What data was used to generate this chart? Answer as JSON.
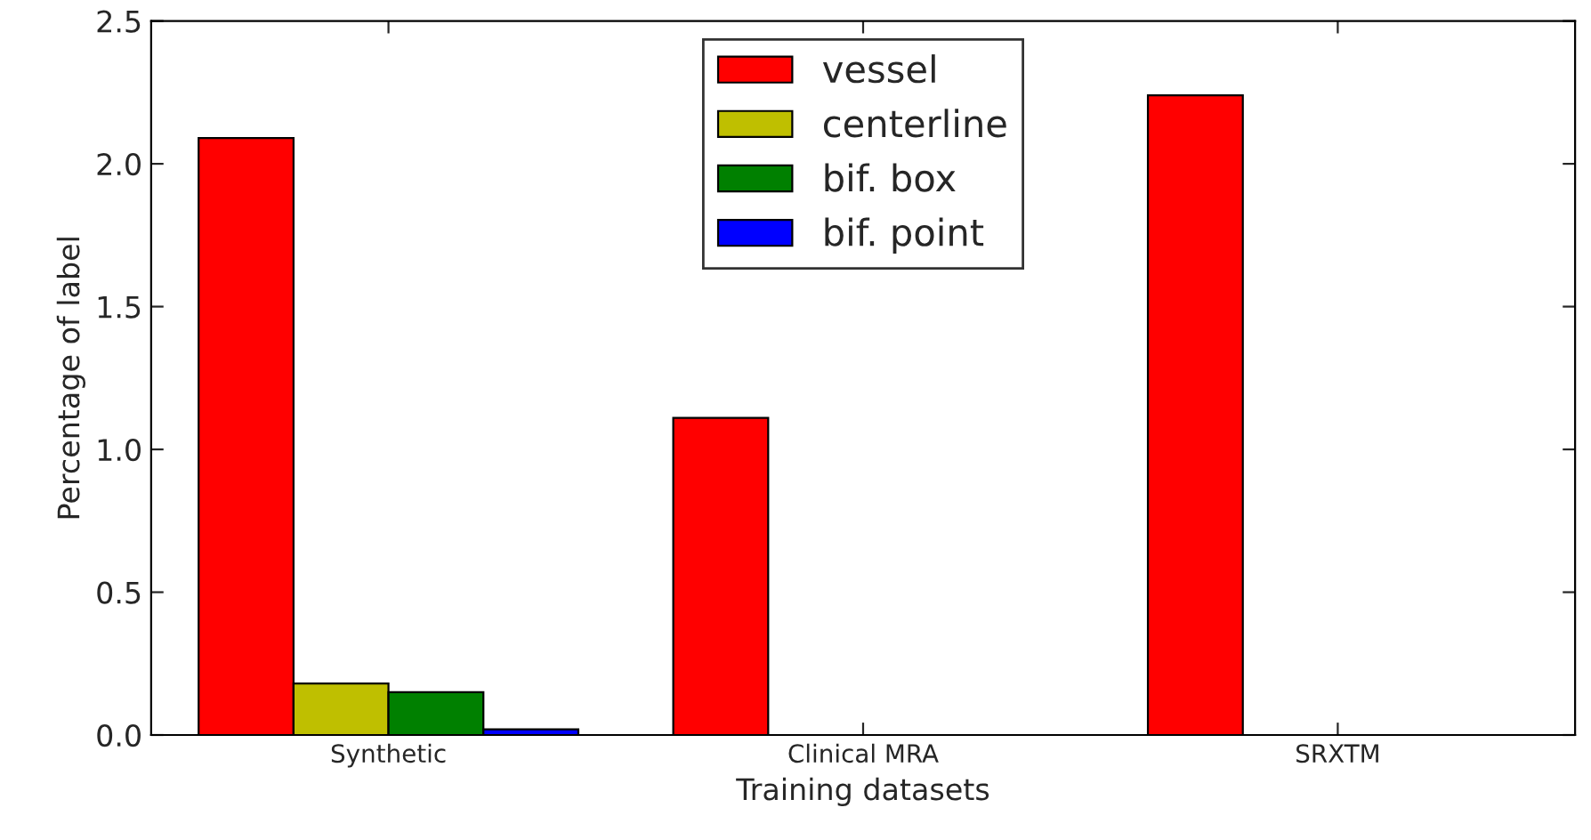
{
  "chart_data": {
    "type": "bar",
    "xlabel": "Training datasets",
    "ylabel": "Percentage of label",
    "categories": [
      "Synthetic",
      "Clinical MRA",
      "SRXTM"
    ],
    "series": [
      {
        "name": "vessel",
        "color": "#ff0000",
        "values": [
          2.09,
          1.11,
          2.24
        ]
      },
      {
        "name": "centerline",
        "color": "#bfbf00",
        "values": [
          0.18,
          null,
          null
        ]
      },
      {
        "name": "bif. box",
        "color": "#008000",
        "values": [
          0.15,
          null,
          null
        ]
      },
      {
        "name": "bif. point",
        "color": "#0000ff",
        "values": [
          0.02,
          null,
          null
        ]
      }
    ],
    "ylim": [
      0,
      2.5
    ],
    "yticks": [
      {
        "value": 0,
        "label": "0.0"
      },
      {
        "value": 0.5,
        "label": "0.5"
      },
      {
        "value": 1,
        "label": "1.0"
      },
      {
        "value": 1.5,
        "label": "1.5"
      },
      {
        "value": 2,
        "label": "2.0"
      },
      {
        "value": 2.5,
        "label": "2.5"
      }
    ],
    "grid": false,
    "legend": "top"
  }
}
